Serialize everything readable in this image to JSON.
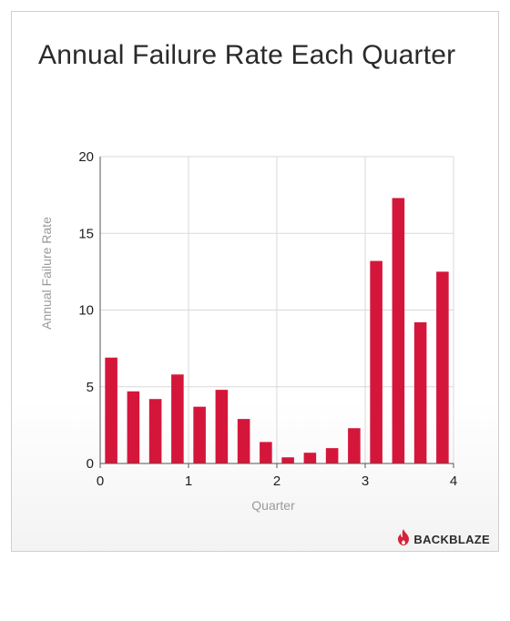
{
  "title": "Annual Failure Rate Each Quarter",
  "brand": {
    "name": "BACKBLAZE",
    "logo_icon": "flame-icon",
    "logo_color": "#d8213a"
  },
  "colors": {
    "bar": "#d5163b",
    "grid": "#d9d9d9",
    "axis": "#555555"
  },
  "chart_data": {
    "type": "bar",
    "xlabel": "Quarter",
    "ylabel": "Annual Failure Rate",
    "xlim": [
      0,
      4
    ],
    "ylim": [
      0,
      20
    ],
    "xticks": [
      0,
      1,
      2,
      3,
      4
    ],
    "yticks": [
      0,
      5,
      10,
      15,
      20
    ],
    "grid": true,
    "legend": "none",
    "bar_width": 0.14,
    "x": [
      0.125,
      0.375,
      0.625,
      0.875,
      1.125,
      1.375,
      1.625,
      1.875,
      2.125,
      2.375,
      2.625,
      2.875,
      3.125,
      3.375,
      3.625,
      3.875
    ],
    "values": [
      6.9,
      4.7,
      4.2,
      5.8,
      3.7,
      4.8,
      2.9,
      1.4,
      0.4,
      0.7,
      1.0,
      2.3,
      13.2,
      17.3,
      9.2,
      12.5
    ]
  }
}
